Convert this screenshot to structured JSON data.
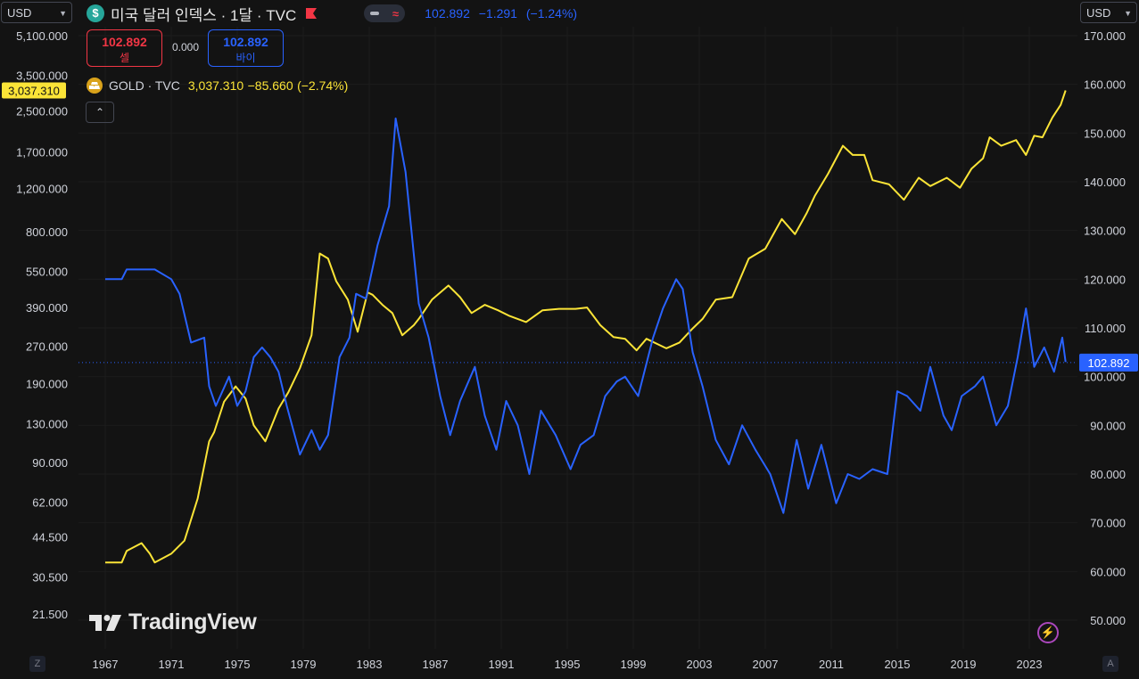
{
  "header": {
    "currency_left": "USD",
    "currency_right": "USD",
    "symbol_title": "미국 달러 인덱스 · 1달 · TVC",
    "dxy_last": "102.892",
    "dxy_change": "−1.291",
    "dxy_change_pct": "(−1.24%)",
    "sell_price": "102.892",
    "sell_label": "셀",
    "spread": "0.000",
    "buy_price": "102.892",
    "buy_label": "바이",
    "gold_name": "GOLD · TVC",
    "gold_last": "3,037.310",
    "gold_change": "−85.660",
    "gold_change_pct": "(−2.74%)",
    "brand": "TradingView",
    "icons": [
      "dollar-badge-icon",
      "flag-icon",
      "toggle-icon",
      "gold-bars-icon",
      "chevron-up-icon",
      "tradingview-logo-icon",
      "lightning-icon",
      "chevron-down-icon"
    ]
  },
  "buttons": {
    "z_label": "Z",
    "a_label": "A"
  },
  "colors": {
    "background": "#131313",
    "dxy": "#2962ff",
    "gold": "#fbe437",
    "sell": "#f23645",
    "grid": "#1e1e1e"
  },
  "chart_data": {
    "type": "line",
    "x_ticks": [
      "1967",
      "1971",
      "1975",
      "1979",
      "1983",
      "1987",
      "1991",
      "1995",
      "1999",
      "2003",
      "2007",
      "2011",
      "2015",
      "2019",
      "2023"
    ],
    "left_axis": {
      "scale": "log",
      "ticks": [
        "5,100.000",
        "3,500.000",
        "2,500.000",
        "1,700.000",
        "1,200.000",
        "800.000",
        "550.000",
        "390.000",
        "270.000",
        "190.000",
        "130.000",
        "90.000",
        "62.000",
        "44.500",
        "30.500",
        "21.500"
      ],
      "last_label": "3,037.310"
    },
    "right_axis": {
      "scale": "linear",
      "ylim": [
        46,
        174
      ],
      "ticks": [
        "170.000",
        "160.000",
        "150.000",
        "140.000",
        "130.000",
        "120.000",
        "110.000",
        "100.000",
        "90.000",
        "80.000",
        "70.000",
        "60.000",
        "50.000"
      ],
      "last_label": "102.892"
    },
    "series": [
      {
        "name": "GOLD · TVC",
        "axis": "left",
        "color": "#fbe437",
        "points": [
          [
            1967.0,
            35
          ],
          [
            1968.0,
            35
          ],
          [
            1968.3,
            39
          ],
          [
            1969.2,
            42
          ],
          [
            1969.7,
            38
          ],
          [
            1970.0,
            35
          ],
          [
            1971.0,
            38
          ],
          [
            1971.8,
            43
          ],
          [
            1972.6,
            64
          ],
          [
            1973.3,
            110
          ],
          [
            1973.6,
            120
          ],
          [
            1974.2,
            160
          ],
          [
            1974.9,
            185
          ],
          [
            1975.5,
            165
          ],
          [
            1976.0,
            128
          ],
          [
            1976.7,
            110
          ],
          [
            1977.5,
            150
          ],
          [
            1978.1,
            175
          ],
          [
            1978.8,
            220
          ],
          [
            1979.5,
            300
          ],
          [
            1980.0,
            650
          ],
          [
            1980.5,
            620
          ],
          [
            1981.0,
            500
          ],
          [
            1981.7,
            420
          ],
          [
            1982.3,
            310
          ],
          [
            1982.9,
            450
          ],
          [
            1983.2,
            440
          ],
          [
            1983.8,
            400
          ],
          [
            1984.4,
            370
          ],
          [
            1985.0,
            300
          ],
          [
            1985.7,
            330
          ],
          [
            1986.0,
            350
          ],
          [
            1986.8,
            420
          ],
          [
            1987.8,
            480
          ],
          [
            1988.5,
            430
          ],
          [
            1989.2,
            370
          ],
          [
            1990.0,
            400
          ],
          [
            1990.8,
            380
          ],
          [
            1991.5,
            360
          ],
          [
            1992.5,
            340
          ],
          [
            1993.5,
            380
          ],
          [
            1994.5,
            385
          ],
          [
            1995.5,
            385
          ],
          [
            1996.2,
            390
          ],
          [
            1997.0,
            330
          ],
          [
            1997.8,
            295
          ],
          [
            1998.5,
            290
          ],
          [
            1999.2,
            260
          ],
          [
            1999.8,
            290
          ],
          [
            2001.0,
            265
          ],
          [
            2001.8,
            280
          ],
          [
            2002.6,
            320
          ],
          [
            2003.2,
            350
          ],
          [
            2004.0,
            420
          ],
          [
            2005.0,
            430
          ],
          [
            2006.0,
            620
          ],
          [
            2007.0,
            680
          ],
          [
            2008.0,
            900
          ],
          [
            2008.8,
            780
          ],
          [
            2009.5,
            950
          ],
          [
            2010.0,
            1120
          ],
          [
            2010.8,
            1380
          ],
          [
            2011.7,
            1800
          ],
          [
            2012.3,
            1650
          ],
          [
            2013.0,
            1650
          ],
          [
            2013.5,
            1300
          ],
          [
            2014.5,
            1250
          ],
          [
            2015.4,
            1080
          ],
          [
            2016.3,
            1330
          ],
          [
            2017.0,
            1230
          ],
          [
            2018.0,
            1330
          ],
          [
            2018.8,
            1210
          ],
          [
            2019.5,
            1450
          ],
          [
            2020.2,
            1600
          ],
          [
            2020.6,
            1950
          ],
          [
            2021.3,
            1800
          ],
          [
            2022.2,
            1900
          ],
          [
            2022.8,
            1650
          ],
          [
            2023.3,
            1980
          ],
          [
            2023.8,
            1950
          ],
          [
            2024.4,
            2350
          ],
          [
            2024.9,
            2650
          ],
          [
            2025.2,
            3037
          ]
        ]
      },
      {
        "name": "미국 달러 인덱스 · 1달 · TVC",
        "axis": "right",
        "color": "#2962ff",
        "points": [
          [
            1967.0,
            120
          ],
          [
            1968.0,
            120
          ],
          [
            1968.3,
            122
          ],
          [
            1969.5,
            122
          ],
          [
            1970.0,
            122
          ],
          [
            1971.0,
            120
          ],
          [
            1971.5,
            117
          ],
          [
            1972.2,
            107
          ],
          [
            1973.0,
            108
          ],
          [
            1973.3,
            98
          ],
          [
            1973.7,
            94
          ],
          [
            1974.5,
            100
          ],
          [
            1975.0,
            94
          ],
          [
            1975.5,
            97
          ],
          [
            1976.0,
            104
          ],
          [
            1976.5,
            106
          ],
          [
            1977.0,
            104
          ],
          [
            1977.5,
            101
          ],
          [
            1978.0,
            94
          ],
          [
            1978.8,
            84
          ],
          [
            1979.5,
            89
          ],
          [
            1980.0,
            85
          ],
          [
            1980.5,
            88
          ],
          [
            1981.2,
            104
          ],
          [
            1981.8,
            108
          ],
          [
            1982.2,
            117
          ],
          [
            1982.8,
            116
          ],
          [
            1983.5,
            127
          ],
          [
            1984.2,
            135
          ],
          [
            1984.6,
            153
          ],
          [
            1985.2,
            142
          ],
          [
            1985.7,
            125
          ],
          [
            1986.0,
            115
          ],
          [
            1986.6,
            108
          ],
          [
            1987.3,
            96
          ],
          [
            1987.9,
            88
          ],
          [
            1988.5,
            95
          ],
          [
            1989.4,
            102
          ],
          [
            1990.0,
            92
          ],
          [
            1990.7,
            85
          ],
          [
            1991.3,
            95
          ],
          [
            1992.0,
            90
          ],
          [
            1992.7,
            80
          ],
          [
            1993.4,
            93
          ],
          [
            1994.3,
            88
          ],
          [
            1995.2,
            81
          ],
          [
            1995.8,
            86
          ],
          [
            1996.6,
            88
          ],
          [
            1997.3,
            96
          ],
          [
            1998.0,
            99
          ],
          [
            1998.5,
            100
          ],
          [
            1999.3,
            96
          ],
          [
            2000.2,
            108
          ],
          [
            2000.8,
            114
          ],
          [
            2001.6,
            120
          ],
          [
            2002.0,
            118
          ],
          [
            2002.6,
            105
          ],
          [
            2003.2,
            98
          ],
          [
            2004.0,
            87
          ],
          [
            2004.8,
            82
          ],
          [
            2005.6,
            90
          ],
          [
            2006.4,
            85
          ],
          [
            2007.3,
            80
          ],
          [
            2008.1,
            72
          ],
          [
            2008.9,
            87
          ],
          [
            2009.6,
            77
          ],
          [
            2010.4,
            86
          ],
          [
            2011.3,
            74
          ],
          [
            2012.0,
            80
          ],
          [
            2012.7,
            79
          ],
          [
            2013.5,
            81
          ],
          [
            2014.4,
            80
          ],
          [
            2015.0,
            97
          ],
          [
            2015.6,
            96
          ],
          [
            2016.4,
            93
          ],
          [
            2017.0,
            102
          ],
          [
            2017.8,
            92
          ],
          [
            2018.3,
            89
          ],
          [
            2018.9,
            96
          ],
          [
            2019.7,
            98
          ],
          [
            2020.2,
            100
          ],
          [
            2021.0,
            90
          ],
          [
            2021.7,
            94
          ],
          [
            2022.3,
            104
          ],
          [
            2022.8,
            114
          ],
          [
            2023.3,
            102
          ],
          [
            2023.9,
            106
          ],
          [
            2024.5,
            101
          ],
          [
            2025.0,
            108
          ],
          [
            2025.2,
            103
          ]
        ]
      }
    ]
  }
}
